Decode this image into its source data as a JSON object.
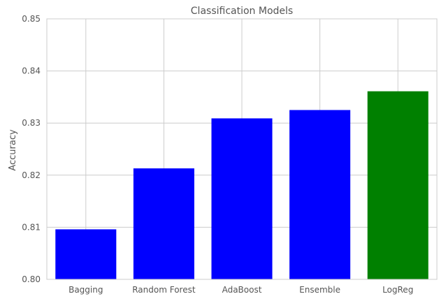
{
  "chart_data": {
    "type": "bar",
    "title": "Classification Models",
    "xlabel": "",
    "ylabel": "Accuracy",
    "categories": [
      "Bagging",
      "Random Forest",
      "AdaBoost",
      "Ensemble",
      "LogReg"
    ],
    "values": [
      0.8096,
      0.8213,
      0.8309,
      0.8325,
      0.8361
    ],
    "bar_colors": [
      "#0000ff",
      "#0000ff",
      "#0000ff",
      "#0000ff",
      "#008000"
    ],
    "ylim": [
      0.8,
      0.85
    ],
    "yticks": [
      "0.80",
      "0.81",
      "0.82",
      "0.83",
      "0.84",
      "0.85"
    ],
    "grid": true,
    "legend": "none"
  },
  "colors": {
    "grid": "#cccccc",
    "frame": "#cccccc",
    "text": "#555555",
    "background": "#ffffff"
  }
}
